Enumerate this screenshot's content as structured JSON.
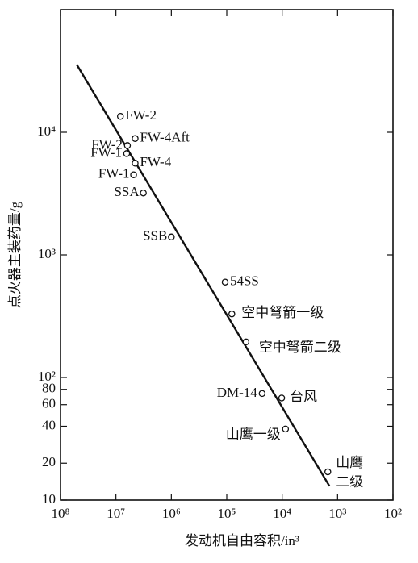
{
  "chart_data": {
    "type": "scatter",
    "xlabel": "发动机自由容积/in³",
    "ylabel": "点火器主装药量/g",
    "xscale": "log",
    "yscale": "log",
    "xlim": [
      100000000,
      100
    ],
    "ylim": [
      10,
      100000
    ],
    "xticks": [
      {
        "value": 100000000,
        "label": "10⁸"
      },
      {
        "value": 10000000,
        "label": "10⁷"
      },
      {
        "value": 1000000,
        "label": "10⁶"
      },
      {
        "value": 100000,
        "label": "10⁵"
      },
      {
        "value": 10000,
        "label": "10⁴"
      },
      {
        "value": 1000,
        "label": "10³"
      },
      {
        "value": 100,
        "label": "10²"
      }
    ],
    "yticks": [
      10,
      20,
      40,
      60,
      80,
      {
        "value": 100,
        "label": "10²"
      },
      {
        "value": 1000,
        "label": "10³"
      },
      {
        "value": 10000,
        "label": "10⁴"
      }
    ],
    "color": "#111111",
    "points": [
      {
        "label": "FW-2",
        "x": 8300000,
        "y": 13500
      },
      {
        "label": "FW-2",
        "x": 6200000,
        "y": 7800
      },
      {
        "label": "FW-4Aft",
        "x": 4500000,
        "y": 8900
      },
      {
        "label": "FW-1",
        "x": 6400000,
        "y": 6700
      },
      {
        "label": "FW-4",
        "x": 4500000,
        "y": 5600
      },
      {
        "label": "FW-1",
        "x": 4800000,
        "y": 4500
      },
      {
        "label": "SSA",
        "x": 3200000,
        "y": 3200
      },
      {
        "label": "SSB",
        "x": 1000000,
        "y": 1400
      },
      {
        "label": "54SS",
        "x": 107000,
        "y": 600
      },
      {
        "label": "空中弩箭一级",
        "x": 81000,
        "y": 330
      },
      {
        "label": "空中弩箭二级",
        "x": 45000,
        "y": 195
      },
      {
        "label": "DM-14",
        "x": 23000,
        "y": 74
      },
      {
        "label": "台风",
        "x": 10200,
        "y": 68
      },
      {
        "label": "山鹰一级",
        "x": 8700,
        "y": 38
      },
      {
        "label": [
          "山鹰",
          "二级"
        ],
        "x": 1500,
        "y": 17
      }
    ],
    "fit_line": {
      "x": [
        51000000,
        1400
      ],
      "y": [
        35700,
        13
      ]
    }
  }
}
